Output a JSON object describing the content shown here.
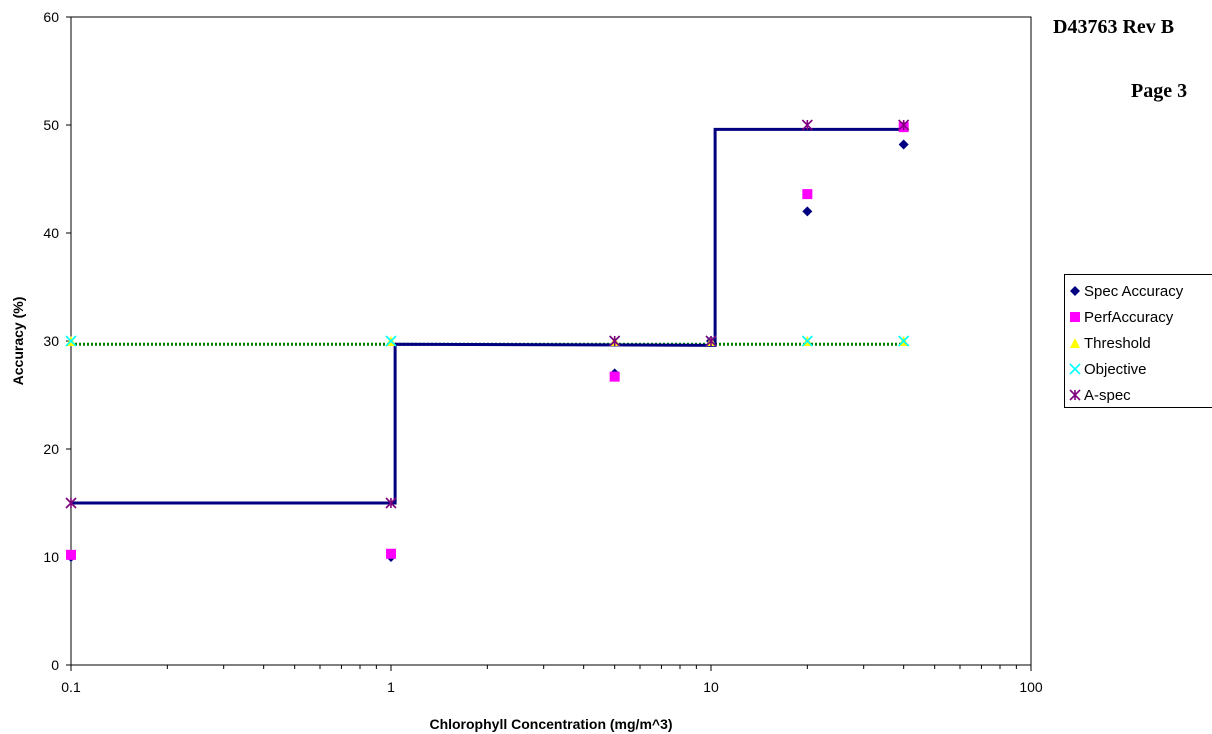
{
  "header": {
    "doc_id": "D43763 Rev B",
    "page": "Page 3"
  },
  "colors": {
    "spec": "#000080",
    "perf": "#ff00ff",
    "threshold": "#ffff00",
    "objective": "#00ffff",
    "aspec": "#800080",
    "spec_line": "#000080",
    "objective_line": "#008000"
  },
  "chart_data": {
    "type": "scatter",
    "xlabel": "Chlorophyll Concentration (mg/m^3)",
    "ylabel": "Accuracy (%)",
    "x_scale": "log",
    "xlim": [
      0.1,
      100
    ],
    "ylim": [
      0,
      60
    ],
    "x_ticks": [
      "0.1",
      "1",
      "10",
      "100"
    ],
    "y_ticks": [
      "0",
      "10",
      "20",
      "30",
      "40",
      "50",
      "60"
    ],
    "grid": false,
    "legend_position": "right",
    "series": [
      {
        "name": "Spec Accuracy",
        "marker": "diamond",
        "x": [
          0.1,
          1,
          5,
          10,
          20,
          40
        ],
        "y": [
          10,
          10,
          27,
          30,
          42,
          48.2
        ]
      },
      {
        "name": "PerfAccuracy",
        "marker": "square",
        "x": [
          0.1,
          1,
          5,
          20,
          40
        ],
        "y": [
          10.2,
          10.3,
          26.7,
          43.6,
          49.8
        ]
      },
      {
        "name": "Threshold",
        "marker": "triangle",
        "x": [
          0.1,
          1,
          5,
          10,
          20,
          40
        ],
        "y": [
          30,
          30,
          30,
          30,
          30,
          30
        ]
      },
      {
        "name": "Objective",
        "marker": "x",
        "x": [
          0.1,
          1,
          5,
          10,
          20,
          40
        ],
        "y": [
          30,
          30,
          30,
          30,
          30,
          30
        ]
      },
      {
        "name": "A-spec",
        "marker": "asterisk",
        "x": [
          0.1,
          1,
          5,
          10,
          20,
          40
        ],
        "y": [
          15,
          15,
          30,
          30,
          50,
          50
        ]
      }
    ],
    "step_line": {
      "x": [
        0.1,
        1.03,
        1.03,
        10.3,
        10.3,
        40
      ],
      "y": [
        15,
        15,
        29.7,
        29.6,
        49.6,
        49.6
      ]
    },
    "dotted_line": {
      "x": [
        0.1,
        40
      ],
      "y": [
        29.7,
        29.7
      ]
    }
  }
}
